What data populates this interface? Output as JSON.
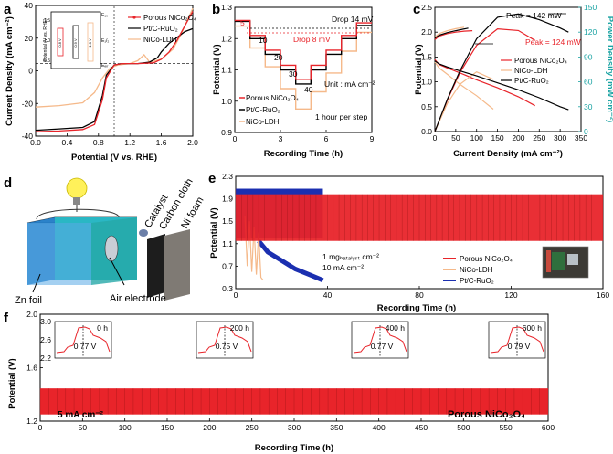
{
  "colors": {
    "porous": "#e8242a",
    "nico": "#f5b98a",
    "ptc": "#000000",
    "ptc_blue": "#1b2fb0",
    "power_axis": "#1aa3a3",
    "bulb": "#fff15a",
    "box_front": "#2ab7c4",
    "box_side": "#1c78c4"
  },
  "chart_data": [
    {
      "panel": "a",
      "type": "line",
      "xlabel": "Potential (V vs. RHE)",
      "ylabel": "Current Density (mA cm⁻²)",
      "xlim": [
        0.0,
        2.0
      ],
      "ylim": [
        -50,
        40
      ],
      "xticks": [
        "0.0",
        "0.4",
        "0.8",
        "1.2",
        "1.6",
        "2.0"
      ],
      "yticks": [
        "-40",
        "-20",
        "0",
        "20",
        "40"
      ],
      "legend": [
        "Porous NiCo₂O₄",
        "Pt/C-RuO₂",
        "NiCo-LDH"
      ],
      "inset": {
        "ylabel": "Potential (V vs. RHE)",
        "yticks": [
          "0.5",
          "1.0",
          "1.5"
        ],
        "right_labels": [
          "E₁₀",
          "E₁/₂",
          "Eₑᵣᵣ"
        ],
        "bar_labels": [
          "0.8 V",
          "0.9 V",
          "1.0 V"
        ]
      },
      "series": [
        {
          "name": "Porous NiCo₂O₄",
          "x": [
            0.0,
            0.3,
            0.6,
            0.75,
            0.85,
            0.9,
            1.0,
            1.1,
            1.3,
            1.5,
            1.6,
            1.7,
            1.8,
            1.9,
            2.0
          ],
          "y": [
            -47,
            -46.5,
            -45.5,
            -42,
            -25,
            -10,
            -1,
            0,
            0,
            0.5,
            3,
            8,
            16,
            26,
            36
          ]
        },
        {
          "name": "Pt/C-RuO₂",
          "x": [
            0.0,
            0.3,
            0.6,
            0.75,
            0.85,
            0.9,
            1.0,
            1.1,
            1.3,
            1.45,
            1.55,
            1.6,
            1.7,
            1.8,
            1.9,
            2.0
          ],
          "y": [
            -46,
            -45,
            -44,
            -40,
            -22,
            -8,
            -1,
            0,
            0,
            1,
            4,
            8,
            14,
            18,
            22,
            24
          ]
        },
        {
          "name": "NiCo-LDH",
          "x": [
            0.0,
            0.3,
            0.6,
            0.75,
            0.85,
            0.95,
            1.05,
            1.2,
            1.3,
            1.38,
            1.45,
            1.6,
            1.75,
            1.85,
            1.95,
            2.0
          ],
          "y": [
            -30,
            -29,
            -27,
            -20,
            -10,
            -3,
            -1,
            0,
            2,
            6,
            1,
            3,
            10,
            20,
            32,
            38
          ]
        }
      ]
    },
    {
      "panel": "b",
      "type": "line",
      "xlabel": "Recording Time (h)",
      "ylabel": "Potential (V)",
      "xlim": [
        0,
        9
      ],
      "ylim": [
        0.9,
        1.3
      ],
      "xticks": [
        "0",
        "3",
        "6",
        "9"
      ],
      "yticks": [
        "0.9",
        "1.0",
        "1.1",
        "1.2",
        "1.3"
      ],
      "step_labels": [
        "5",
        "10",
        "20",
        "30",
        "40"
      ],
      "annotations": [
        "Drop 14 mV",
        "Drop 8 mV",
        "Unit : mA cm⁻²",
        "1 hour per step"
      ],
      "legend": [
        "Porous NiCo₂O₄",
        "Pt/C-RuO₂",
        "NiCo-LDH"
      ],
      "series": [
        {
          "name": "Porous NiCo₂O₄",
          "x": [
            0,
            1,
            1,
            2,
            2,
            3,
            3,
            4,
            4,
            5,
            5,
            6,
            6,
            7,
            7,
            8,
            8,
            9
          ],
          "y": [
            1.258,
            1.258,
            1.21,
            1.21,
            1.163,
            1.163,
            1.115,
            1.115,
            1.07,
            1.07,
            1.115,
            1.115,
            1.163,
            1.163,
            1.21,
            1.21,
            1.25,
            1.25
          ]
        },
        {
          "name": "Pt/C-RuO₂",
          "x": [
            0,
            1,
            1,
            2,
            2,
            3,
            3,
            4,
            4,
            5,
            5,
            6,
            6,
            7,
            7,
            8,
            8,
            9
          ],
          "y": [
            1.255,
            1.255,
            1.2,
            1.2,
            1.15,
            1.15,
            1.1,
            1.1,
            1.055,
            1.055,
            1.1,
            1.1,
            1.15,
            1.15,
            1.2,
            1.2,
            1.242,
            1.242
          ]
        },
        {
          "name": "NiCo-LDH",
          "x": [
            0,
            1,
            1,
            2,
            2,
            3,
            3,
            4,
            4,
            5,
            5,
            6,
            6,
            7,
            7,
            8,
            8,
            9
          ],
          "y": [
            1.24,
            1.24,
            1.17,
            1.17,
            1.11,
            1.11,
            1.04,
            1.04,
            0.975,
            0.975,
            1.03,
            1.03,
            1.09,
            1.09,
            1.16,
            1.16,
            1.22,
            1.22
          ]
        }
      ]
    },
    {
      "panel": "c",
      "type": "line",
      "xlabel": "Current Density (mA cm⁻²)",
      "ylabel": "Potential (V)",
      "ylabel_right": "Power Density (mW cm⁻²)",
      "xlim": [
        0,
        350
      ],
      "ylim": [
        0.0,
        2.5
      ],
      "ylim_right": [
        0,
        150
      ],
      "xticks": [
        "0",
        "50",
        "100",
        "150",
        "200",
        "250",
        "300",
        "350"
      ],
      "yticks": [
        "0.0",
        "0.5",
        "1.0",
        "1.5",
        "2.0",
        "2.5"
      ],
      "yticks_right": [
        "0",
        "30",
        "60",
        "90",
        "120",
        "150"
      ],
      "annotations": [
        "Peak = 142 mW",
        "Peak = 124 mW"
      ],
      "legend": [
        "Porous NiCo₂O₄",
        "NiCo-LDH",
        "Pt/C-RuO₂"
      ],
      "series": [
        {
          "name": "Porous NiCo₂O₄ V",
          "x": [
            0,
            10,
            30,
            60,
            100,
            150,
            200,
            240
          ],
          "y": [
            1.45,
            1.35,
            1.28,
            1.18,
            1.04,
            0.88,
            0.7,
            0.52
          ]
        },
        {
          "name": "Porous NiCo₂O₄ P",
          "x": [
            0,
            30,
            60,
            100,
            150,
            200,
            240
          ],
          "y": [
            0,
            38,
            71,
            104,
            124,
            122,
            110
          ]
        },
        {
          "name": "NiCo-LDH V",
          "x": [
            0,
            10,
            30,
            60,
            100,
            140
          ],
          "y": [
            1.4,
            1.28,
            1.15,
            0.95,
            0.72,
            0.45
          ]
        },
        {
          "name": "NiCo-LDH P",
          "x": [
            0,
            30,
            60,
            100,
            140
          ],
          "y": [
            0,
            34,
            57,
            72,
            63
          ]
        },
        {
          "name": "Pt/C-RuO₂ V",
          "x": [
            0,
            10,
            30,
            60,
            100,
            150,
            200,
            250,
            300,
            320
          ],
          "y": [
            1.42,
            1.36,
            1.3,
            1.22,
            1.12,
            0.98,
            0.84,
            0.68,
            0.5,
            0.44
          ]
        },
        {
          "name": "Pt/C-RuO₂ P",
          "x": [
            0,
            30,
            60,
            100,
            150,
            200,
            250,
            300,
            320
          ],
          "y": [
            0,
            39,
            73,
            112,
            138,
            142,
            135,
            125,
            120
          ]
        },
        {
          "name": "Porous NiCo₂O₄ charge",
          "x": [
            0,
            10,
            30,
            50,
            70,
            90
          ],
          "y": [
            1.85,
            1.92,
            1.97,
            2.0,
            2.02,
            2.03
          ]
        },
        {
          "name": "NiCo-LDH charge",
          "x": [
            0,
            10,
            30,
            50,
            70
          ],
          "y": [
            1.9,
            1.97,
            2.03,
            2.07,
            2.1
          ]
        },
        {
          "name": "Pt/C-RuO₂ charge",
          "x": [
            0,
            10,
            30,
            50,
            80
          ],
          "y": [
            1.88,
            1.94,
            1.99,
            2.03,
            2.08
          ]
        }
      ]
    },
    {
      "panel": "e",
      "type": "line",
      "xlabel": "Recording Time (h)",
      "ylabel": "Potential (V)",
      "xlim": [
        0,
        160
      ],
      "ylim": [
        0.3,
        2.3
      ],
      "xticks": [
        "0",
        "40",
        "80",
        "120",
        "160"
      ],
      "yticks": [
        "0.3",
        "0.7",
        "1.1",
        "1.5",
        "1.9",
        "2.3"
      ],
      "annotations": [
        "1 mgₕₐₜₐₗᵧₛₜ cm⁻²",
        "10 mA cm⁻²"
      ],
      "legend": [
        "Porous NiCo₂O₄",
        "NiCo-LDH",
        "Pt/C-RuO₂"
      ],
      "series": [
        {
          "name": "Porous NiCo₂O₄",
          "charge_V": 1.98,
          "discharge_V": 1.15,
          "t_end": 160
        },
        {
          "name": "NiCo-LDH",
          "charge_V": 2.05,
          "discharge_V": 0.45,
          "t_end": 12
        },
        {
          "name": "Pt/C-RuO₂",
          "charge_V": 2.08,
          "discharge_V": 0.5,
          "t_end": 38
        }
      ]
    },
    {
      "panel": "f",
      "type": "line",
      "xlabel": "Recording Time (h)",
      "ylabel": "Potential (V)",
      "xlim": [
        0,
        600
      ],
      "ylim": [
        1.0,
        2.2
      ],
      "xticks": [
        "0",
        "50",
        "100",
        "150",
        "200",
        "250",
        "300",
        "350",
        "400",
        "450",
        "500",
        "550",
        "600"
      ],
      "yticks": [
        "1.2",
        "1.6",
        "2.0"
      ],
      "annotations": [
        "5 mA cm⁻²",
        "Porous NiCo₂O₄"
      ],
      "series": [
        {
          "name": "Porous NiCo₂O₄",
          "charge_V": 1.98,
          "discharge_V": 1.2,
          "t_end": 600
        }
      ],
      "insets": [
        {
          "label": "0 h",
          "gap": "0.77 V"
        },
        {
          "label": "200 h",
          "gap": "0.75 V"
        },
        {
          "label": "400 h",
          "gap": "0.77 V"
        },
        {
          "label": "600 h",
          "gap": "0.79 V"
        }
      ],
      "inset_yticks": [
        "2.2",
        "2.6",
        "3.0"
      ]
    }
  ],
  "panel_labels": [
    "a",
    "b",
    "c",
    "d",
    "e",
    "f"
  ],
  "diagram": {
    "labels": [
      "Catalyst",
      "Carbon cloth",
      "Ni foam",
      "Zn foil",
      "Air electrode"
    ]
  }
}
